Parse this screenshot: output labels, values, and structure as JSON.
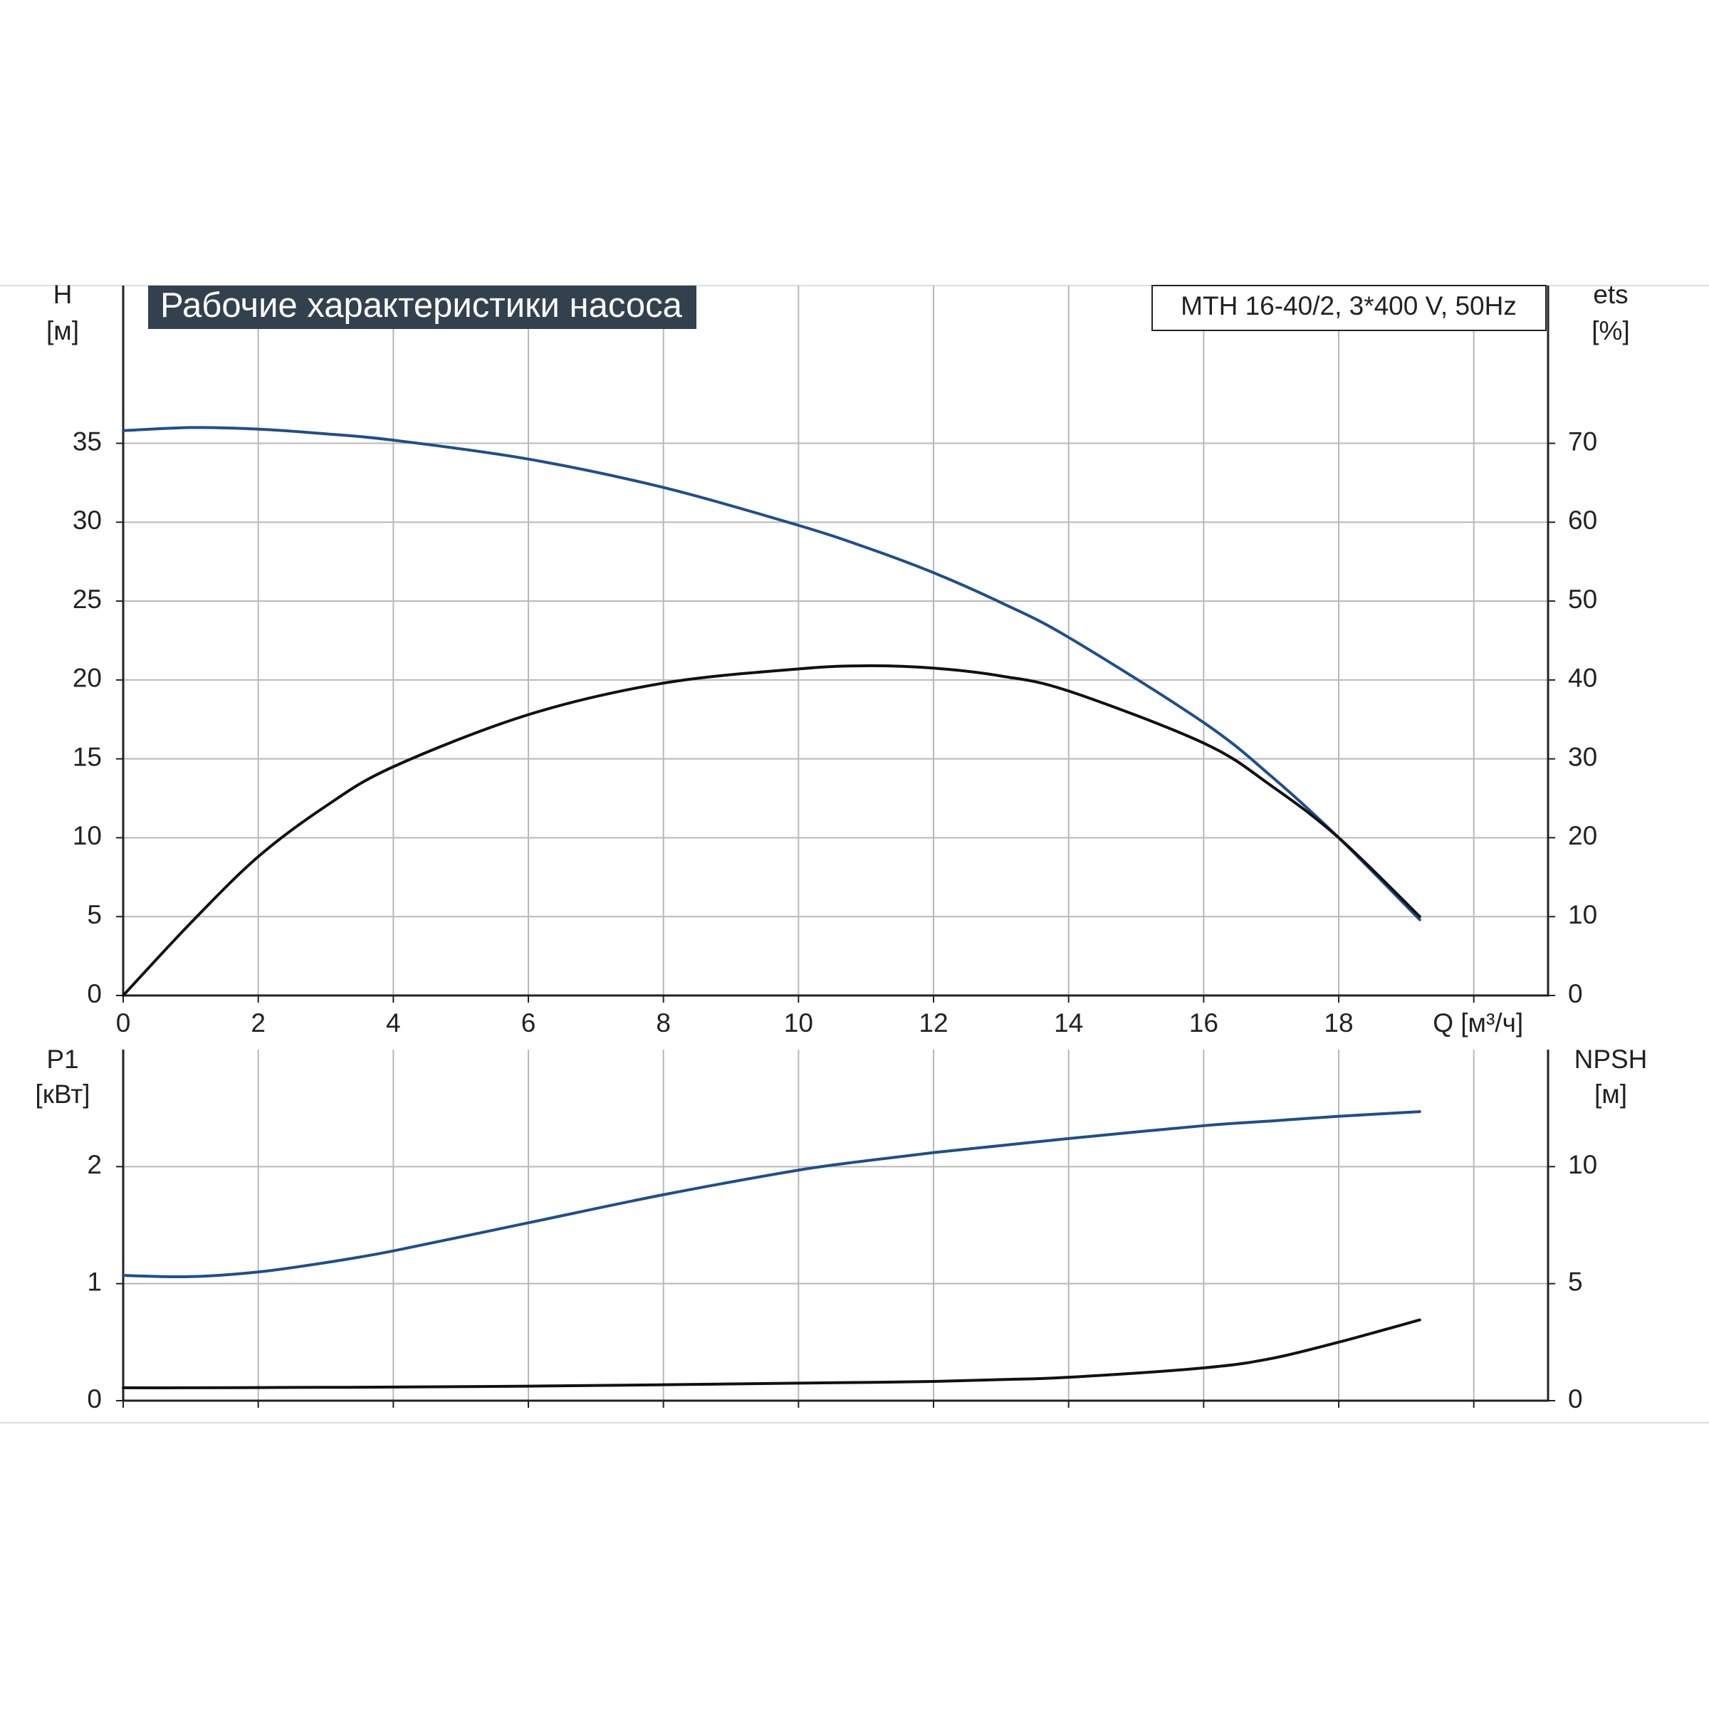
{
  "chart_data": [
    {
      "type": "line",
      "title": "Рабочие характеристики насоса",
      "subtitle": "MTH 16-40/2, 3*400 V, 50Hz",
      "y_label": "H",
      "y_unit": "[м]",
      "y2_label": "ets",
      "y2_unit": "[%]",
      "x": [
        0,
        1,
        2,
        3,
        4,
        6,
        8,
        10,
        11,
        12,
        13,
        14,
        16,
        17,
        18,
        19.2
      ],
      "xlim": [
        0,
        21.1
      ],
      "xticks": [
        0,
        2,
        4,
        6,
        8,
        10,
        12,
        14,
        16,
        18,
        {
          "value": 20,
          "label": "Q [м³/ч]"
        }
      ],
      "ylim": [
        0,
        45
      ],
      "yticks": [
        0,
        5,
        10,
        15,
        20,
        25,
        30,
        35
      ],
      "y2lim": [
        0,
        90
      ],
      "y2ticks": [
        0,
        10,
        20,
        30,
        40,
        50,
        60,
        70
      ],
      "grid": true,
      "series": [
        {
          "color": "#1f4e8c",
          "values": [
            35.8,
            36.0,
            35.9,
            35.6,
            35.2,
            34.0,
            32.2,
            29.8,
            28.4,
            26.8,
            24.9,
            22.7,
            17.3,
            13.9,
            10.0,
            4.8
          ]
        },
        {
          "color": "#111111",
          "axis": "y2",
          "values": [
            0,
            9.2,
            17.6,
            24,
            29,
            35.6,
            39.6,
            41.4,
            41.8,
            41.5,
            40.5,
            38.6,
            32,
            26.6,
            20,
            10
          ]
        }
      ]
    },
    {
      "type": "line",
      "y_label": "P1",
      "y_unit": "[кВт]",
      "y2_label": "NPSH",
      "y2_unit": "[м]",
      "x": [
        0,
        1,
        2,
        3,
        4,
        6,
        8,
        10,
        11,
        12,
        13,
        14,
        16,
        17,
        18,
        19.2
      ],
      "xlim": [
        0,
        21.1
      ],
      "ylim": [
        0,
        3
      ],
      "yticks": [
        0,
        1,
        2
      ],
      "y2lim": [
        0,
        15
      ],
      "y2ticks": [
        0,
        5,
        10
      ],
      "grid": true,
      "series": [
        {
          "color": "#1f4e8c",
          "values": [
            1.07,
            1.06,
            1.1,
            1.18,
            1.28,
            1.52,
            1.76,
            1.97,
            2.05,
            2.12,
            2.18,
            2.24,
            2.35,
            2.39,
            2.43,
            2.47
          ]
        },
        {
          "color": "#111111",
          "axis": "y2",
          "values": [
            0.55,
            0.55,
            0.56,
            0.57,
            0.58,
            0.62,
            0.68,
            0.75,
            0.78,
            0.82,
            0.9,
            1.0,
            1.4,
            1.8,
            2.5,
            3.45
          ]
        }
      ]
    }
  ]
}
